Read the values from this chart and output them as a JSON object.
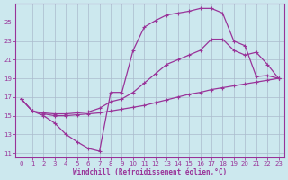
{
  "xlabel": "Windchill (Refroidissement éolien,°C)",
  "bg_color": "#cce8ee",
  "line_color": "#993399",
  "grid_color": "#aabbcc",
  "xlim": [
    -0.5,
    23.5
  ],
  "ylim": [
    10.5,
    27.0
  ],
  "xticks": [
    0,
    1,
    2,
    3,
    4,
    5,
    6,
    7,
    8,
    9,
    10,
    11,
    12,
    13,
    14,
    15,
    16,
    17,
    18,
    19,
    20,
    21,
    22,
    23
  ],
  "yticks": [
    11,
    13,
    15,
    17,
    19,
    21,
    23,
    25
  ],
  "line1_x": [
    0,
    1,
    2,
    3,
    4,
    5,
    6,
    7,
    8,
    9,
    10,
    11,
    12,
    13,
    14,
    15,
    16,
    17,
    18,
    19,
    20,
    21,
    22,
    23
  ],
  "line1_y": [
    16.8,
    15.5,
    15.0,
    14.2,
    13.0,
    12.2,
    11.5,
    11.2,
    17.5,
    17.5,
    22.0,
    24.5,
    25.2,
    25.8,
    26.0,
    26.2,
    26.5,
    26.5,
    26.0,
    23.0,
    22.5,
    19.2,
    19.3,
    19.0
  ],
  "line2_x": [
    0,
    1,
    2,
    3,
    4,
    5,
    6,
    7,
    8,
    9,
    10,
    11,
    12,
    13,
    14,
    15,
    16,
    17,
    18,
    19,
    20,
    21,
    22,
    23
  ],
  "line2_y": [
    16.8,
    15.5,
    15.3,
    15.2,
    15.2,
    15.3,
    15.4,
    15.8,
    16.5,
    16.8,
    17.5,
    18.5,
    19.5,
    20.5,
    21.0,
    21.5,
    22.0,
    23.2,
    23.2,
    22.0,
    21.5,
    21.8,
    20.5,
    19.0
  ],
  "line3_x": [
    0,
    1,
    2,
    3,
    4,
    5,
    6,
    7,
    8,
    9,
    10,
    11,
    12,
    13,
    14,
    15,
    16,
    17,
    18,
    19,
    20,
    21,
    22,
    23
  ],
  "line3_y": [
    16.8,
    15.5,
    15.2,
    15.0,
    15.0,
    15.1,
    15.2,
    15.3,
    15.5,
    15.7,
    15.9,
    16.1,
    16.4,
    16.7,
    17.0,
    17.3,
    17.5,
    17.8,
    18.0,
    18.2,
    18.4,
    18.6,
    18.8,
    19.0
  ]
}
